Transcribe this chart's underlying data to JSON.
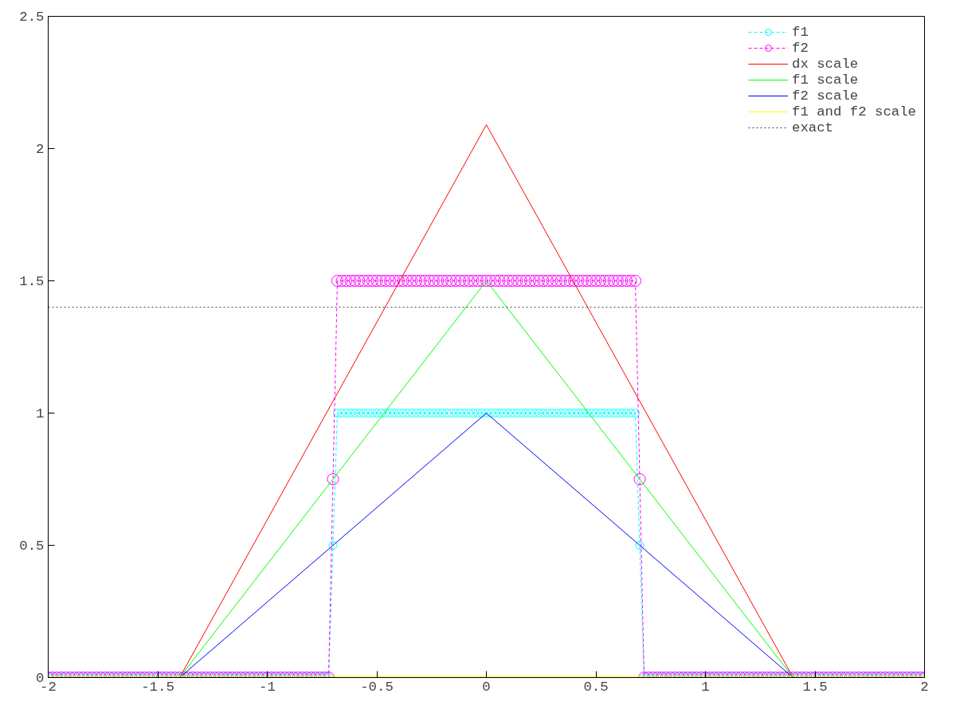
{
  "chart_data": {
    "type": "line",
    "x": [
      -2,
      -1.98,
      -1.96,
      -1.94,
      -1.92,
      -1.9,
      -1.88,
      -1.86,
      -1.84,
      -1.82,
      -1.8,
      -1.78,
      -1.76,
      -1.74,
      -1.72,
      -1.7,
      -1.68,
      -1.66,
      -1.64,
      -1.62,
      -1.6,
      -1.58,
      -1.56,
      -1.54,
      -1.52,
      -1.5,
      -1.48,
      -1.46,
      -1.44,
      -1.42,
      -1.4,
      -1.38,
      -1.36,
      -1.34,
      -1.32,
      -1.3,
      -1.28,
      -1.26,
      -1.24,
      -1.22,
      -1.2,
      -1.18,
      -1.16,
      -1.14,
      -1.12,
      -1.1,
      -1.08,
      -1.06,
      -1.04,
      -1.02,
      -1,
      -0.98,
      -0.96,
      -0.94,
      -0.92,
      -0.9,
      -0.88,
      -0.86,
      -0.84,
      -0.82,
      -0.8,
      -0.78,
      -0.76,
      -0.74,
      -0.72,
      -0.7,
      -0.68,
      -0.66,
      -0.64,
      -0.62,
      -0.6,
      -0.58,
      -0.56,
      -0.54,
      -0.52,
      -0.5,
      -0.48,
      -0.46,
      -0.44,
      -0.42,
      -0.4,
      -0.38,
      -0.36,
      -0.34,
      -0.32,
      -0.3,
      -0.28,
      -0.26,
      -0.24,
      -0.22,
      -0.2,
      -0.18,
      -0.16,
      -0.14,
      -0.12,
      -0.1,
      -0.08,
      -0.06,
      -0.04,
      -0.02,
      0,
      0.02,
      0.04,
      0.06,
      0.08,
      0.1,
      0.12,
      0.14,
      0.16,
      0.18,
      0.2,
      0.22,
      0.24,
      0.26,
      0.28,
      0.3,
      0.32,
      0.34,
      0.36,
      0.38,
      0.4,
      0.42,
      0.44,
      0.46,
      0.48,
      0.5,
      0.52,
      0.54,
      0.56,
      0.58,
      0.6,
      0.62,
      0.64,
      0.66,
      0.68,
      0.7,
      0.72,
      0.74,
      0.76,
      0.78,
      0.8,
      0.82,
      0.84,
      0.86,
      0.88,
      0.9,
      0.92,
      0.94,
      0.96,
      0.98,
      1,
      1.02,
      1.04,
      1.06,
      1.08,
      1.1,
      1.12,
      1.14,
      1.16,
      1.18,
      1.2,
      1.22,
      1.24,
      1.26,
      1.28,
      1.3,
      1.32,
      1.34,
      1.36,
      1.38,
      1.4,
      1.42,
      1.44,
      1.46,
      1.48,
      1.5,
      1.52,
      1.54,
      1.56,
      1.58,
      1.6,
      1.62,
      1.64,
      1.66,
      1.68,
      1.7,
      1.72,
      1.74,
      1.76,
      1.78,
      1.8,
      1.82,
      1.84,
      1.86,
      1.88,
      1.9,
      1.92,
      1.94,
      1.96,
      1.98,
      2
    ],
    "series": [
      {
        "name": "f1",
        "color": "#00ffff",
        "marker": "circle",
        "line_style": "dashed",
        "values": [
          0,
          0,
          0,
          0,
          0,
          0,
          0,
          0,
          0,
          0,
          0,
          0,
          0,
          0,
          0,
          0,
          0,
          0,
          0,
          0,
          0,
          0,
          0,
          0,
          0,
          0,
          0,
          0,
          0,
          0,
          0,
          0,
          0,
          0,
          0,
          0,
          0,
          0,
          0,
          0,
          0,
          0,
          0,
          0,
          0,
          0,
          0,
          0,
          0,
          0,
          0,
          0,
          0,
          0,
          0,
          0,
          0,
          0,
          0,
          0,
          0,
          0,
          0,
          0,
          0,
          0.5,
          1,
          1,
          1,
          1,
          1,
          1,
          1,
          1,
          1,
          1,
          1,
          1,
          1,
          1,
          1,
          1,
          1,
          1,
          1,
          1,
          1,
          1,
          1,
          1,
          1,
          1,
          1,
          1,
          1,
          1,
          1,
          1,
          1,
          1,
          1,
          1,
          1,
          1,
          1,
          1,
          1,
          1,
          1,
          1,
          1,
          1,
          1,
          1,
          1,
          1,
          1,
          1,
          1,
          1,
          1,
          1,
          1,
          1,
          1,
          1,
          1,
          1,
          1,
          1,
          1,
          1,
          1,
          1,
          1,
          0.5,
          0,
          0,
          0,
          0,
          0,
          0,
          0,
          0,
          0,
          0,
          0,
          0,
          0,
          0,
          0,
          0,
          0,
          0,
          0,
          0,
          0,
          0,
          0,
          0,
          0,
          0,
          0,
          0,
          0,
          0,
          0,
          0,
          0,
          0,
          0,
          0,
          0,
          0,
          0,
          0,
          0,
          0,
          0,
          0,
          0,
          0,
          0,
          0,
          0,
          0,
          0,
          0,
          0,
          0,
          0,
          0,
          0,
          0,
          0,
          0,
          0,
          0,
          0,
          0,
          0
        ]
      },
      {
        "name": "f2",
        "color": "#ff00ff",
        "marker": "circle",
        "line_style": "dashed",
        "values": [
          0,
          0,
          0,
          0,
          0,
          0,
          0,
          0,
          0,
          0,
          0,
          0,
          0,
          0,
          0,
          0,
          0,
          0,
          0,
          0,
          0,
          0,
          0,
          0,
          0,
          0,
          0,
          0,
          0,
          0,
          0,
          0,
          0,
          0,
          0,
          0,
          0,
          0,
          0,
          0,
          0,
          0,
          0,
          0,
          0,
          0,
          0,
          0,
          0,
          0,
          0,
          0,
          0,
          0,
          0,
          0,
          0,
          0,
          0,
          0,
          0,
          0,
          0,
          0,
          0,
          0.75,
          1.5,
          1.5,
          1.5,
          1.5,
          1.5,
          1.5,
          1.5,
          1.5,
          1.5,
          1.5,
          1.5,
          1.5,
          1.5,
          1.5,
          1.5,
          1.5,
          1.5,
          1.5,
          1.5,
          1.5,
          1.5,
          1.5,
          1.5,
          1.5,
          1.5,
          1.5,
          1.5,
          1.5,
          1.5,
          1.5,
          1.5,
          1.5,
          1.5,
          1.5,
          1.5,
          1.5,
          1.5,
          1.5,
          1.5,
          1.5,
          1.5,
          1.5,
          1.5,
          1.5,
          1.5,
          1.5,
          1.5,
          1.5,
          1.5,
          1.5,
          1.5,
          1.5,
          1.5,
          1.5,
          1.5,
          1.5,
          1.5,
          1.5,
          1.5,
          1.5,
          1.5,
          1.5,
          1.5,
          1.5,
          1.5,
          1.5,
          1.5,
          1.5,
          1.5,
          0.75,
          0,
          0,
          0,
          0,
          0,
          0,
          0,
          0,
          0,
          0,
          0,
          0,
          0,
          0,
          0,
          0,
          0,
          0,
          0,
          0,
          0,
          0,
          0,
          0,
          0,
          0,
          0,
          0,
          0,
          0,
          0,
          0,
          0,
          0,
          0,
          0,
          0,
          0,
          0,
          0,
          0,
          0,
          0,
          0,
          0,
          0,
          0,
          0,
          0,
          0,
          0,
          0,
          0,
          0,
          0,
          0,
          0,
          0,
          0,
          0,
          0,
          0,
          0,
          0,
          0
        ]
      },
      {
        "name": "dx scale",
        "color": "#ff0000",
        "line_style": "solid",
        "x": [
          -2,
          -1.4,
          0,
          1.4,
          2
        ],
        "values": [
          0,
          0,
          2.09,
          0,
          0
        ]
      },
      {
        "name": "f1 scale",
        "color": "#00ff00",
        "line_style": "solid",
        "x": [
          -2,
          -1.4,
          0,
          1.4,
          2
        ],
        "values": [
          0,
          0,
          1.5,
          0,
          0
        ]
      },
      {
        "name": "f2 scale",
        "color": "#0000ff",
        "line_style": "solid",
        "x": [
          -2,
          -1.4,
          0,
          1.4,
          2
        ],
        "values": [
          0,
          0,
          1,
          0,
          0
        ]
      },
      {
        "name": "f1 and f2 scale",
        "color": "#ffff00",
        "line_style": "solid",
        "x": [
          -2,
          2
        ],
        "values": [
          0.005,
          0.005
        ]
      },
      {
        "name": "exact",
        "color": "#404040",
        "line_style": "dotted",
        "x": [
          -2,
          2
        ],
        "values": [
          1.4,
          1.4
        ]
      }
    ],
    "xlim": [
      -2,
      2
    ],
    "xticks": [
      -2,
      -1.5,
      -1,
      -0.5,
      0,
      0.5,
      1,
      1.5,
      2
    ],
    "ylim": [
      0,
      2.5
    ],
    "yticks": [
      0,
      0.5,
      1,
      1.5,
      2,
      2.5
    ],
    "grid": false,
    "legend": "top right"
  }
}
